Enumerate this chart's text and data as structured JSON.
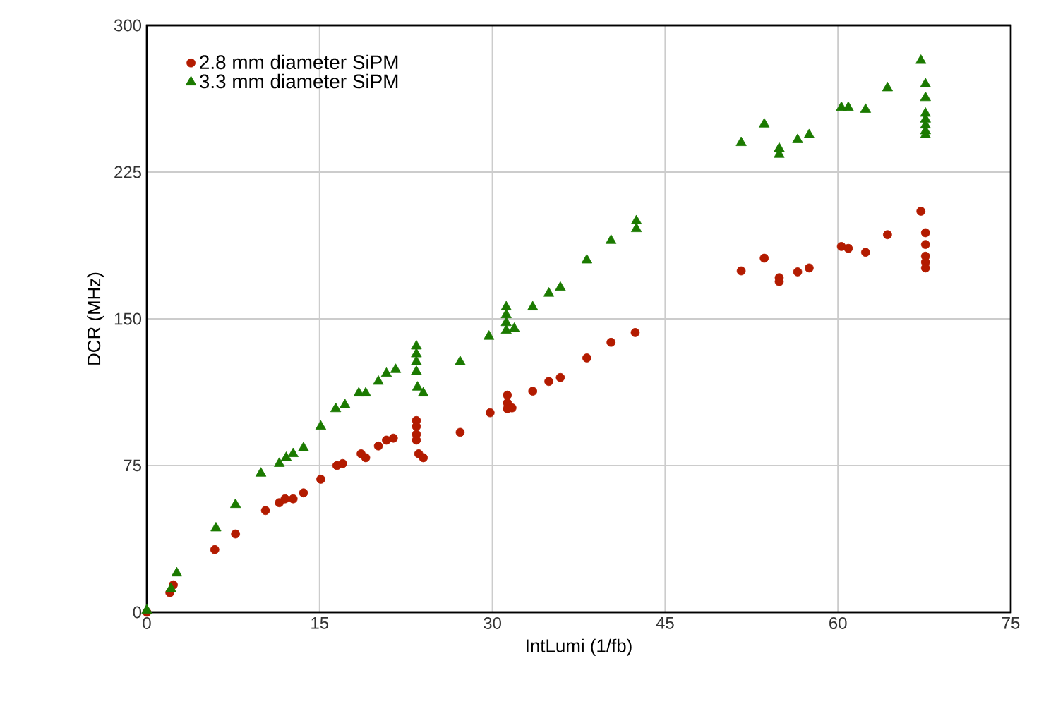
{
  "chart_data": {
    "type": "scatter",
    "xlabel": "IntLumi (1/fb)",
    "ylabel": "DCR (MHz)",
    "xlim": [
      0,
      75
    ],
    "ylim": [
      0,
      300
    ],
    "xticks": [
      0,
      15,
      30,
      45,
      60,
      75
    ],
    "yticks": [
      0,
      75,
      150,
      225,
      300
    ],
    "grid": true,
    "legend": "top left",
    "series": [
      {
        "name": "2.8 mm diameter SiPM",
        "color": "#b31b00",
        "marker": "circle",
        "x": [
          0,
          2.0,
          2.3,
          5.9,
          7.7,
          10.3,
          11.5,
          12.0,
          12.7,
          13.6,
          15.1,
          16.5,
          17.0,
          18.6,
          19.0,
          20.1,
          20.8,
          21.4,
          23.4,
          23.4,
          23.4,
          23.4,
          23.6,
          24.0,
          27.2,
          29.8,
          31.3,
          31.3,
          31.3,
          31.7,
          33.5,
          34.9,
          35.9,
          38.2,
          40.3,
          42.4,
          51.6,
          53.6,
          54.9,
          54.9,
          56.5,
          57.5,
          60.3,
          60.9,
          62.4,
          64.3,
          67.2,
          67.6,
          67.6,
          67.6,
          67.6,
          67.6
        ],
        "values": [
          0,
          10,
          14,
          32,
          40,
          52,
          56,
          58,
          58,
          61,
          68,
          75,
          76,
          81,
          79,
          85,
          88,
          89,
          98,
          95,
          91,
          88,
          81,
          79,
          92,
          102,
          111,
          107,
          104,
          104.5,
          113,
          118,
          120,
          130,
          138,
          143,
          174.5,
          181,
          171,
          169,
          174,
          176,
          187,
          186,
          184,
          193,
          205,
          194,
          188,
          182,
          179,
          176
        ]
      },
      {
        "name": "3.3 mm diameter SiPM",
        "color": "#1b7a00",
        "marker": "triangle",
        "x": [
          0,
          2.1,
          2.6,
          6.0,
          7.7,
          9.9,
          11.5,
          12.1,
          12.7,
          13.6,
          15.1,
          16.4,
          17.2,
          18.4,
          19.0,
          20.1,
          20.8,
          21.6,
          23.4,
          23.4,
          23.4,
          23.4,
          23.5,
          24.0,
          27.2,
          29.7,
          31.2,
          31.2,
          31.2,
          31.2,
          31.9,
          33.5,
          34.9,
          35.9,
          38.2,
          40.3,
          42.5,
          42.5,
          51.6,
          53.6,
          54.9,
          54.9,
          56.5,
          57.5,
          60.3,
          60.9,
          62.4,
          64.3,
          67.2,
          67.6,
          67.6,
          67.6,
          67.6,
          67.6,
          67.6,
          67.6
        ],
        "values": [
          1,
          12,
          20,
          43,
          55,
          71,
          76,
          79,
          81,
          84,
          95,
          104,
          106,
          112,
          112,
          118,
          122,
          124,
          136,
          132,
          128,
          123,
          115,
          112,
          128,
          141,
          156,
          152,
          148,
          144,
          145,
          156,
          163,
          166,
          180,
          190,
          200,
          196,
          240,
          249.5,
          237,
          234,
          241.5,
          244,
          258,
          258,
          257,
          268,
          282,
          270,
          263,
          255,
          252,
          249,
          246,
          244
        ]
      }
    ]
  }
}
